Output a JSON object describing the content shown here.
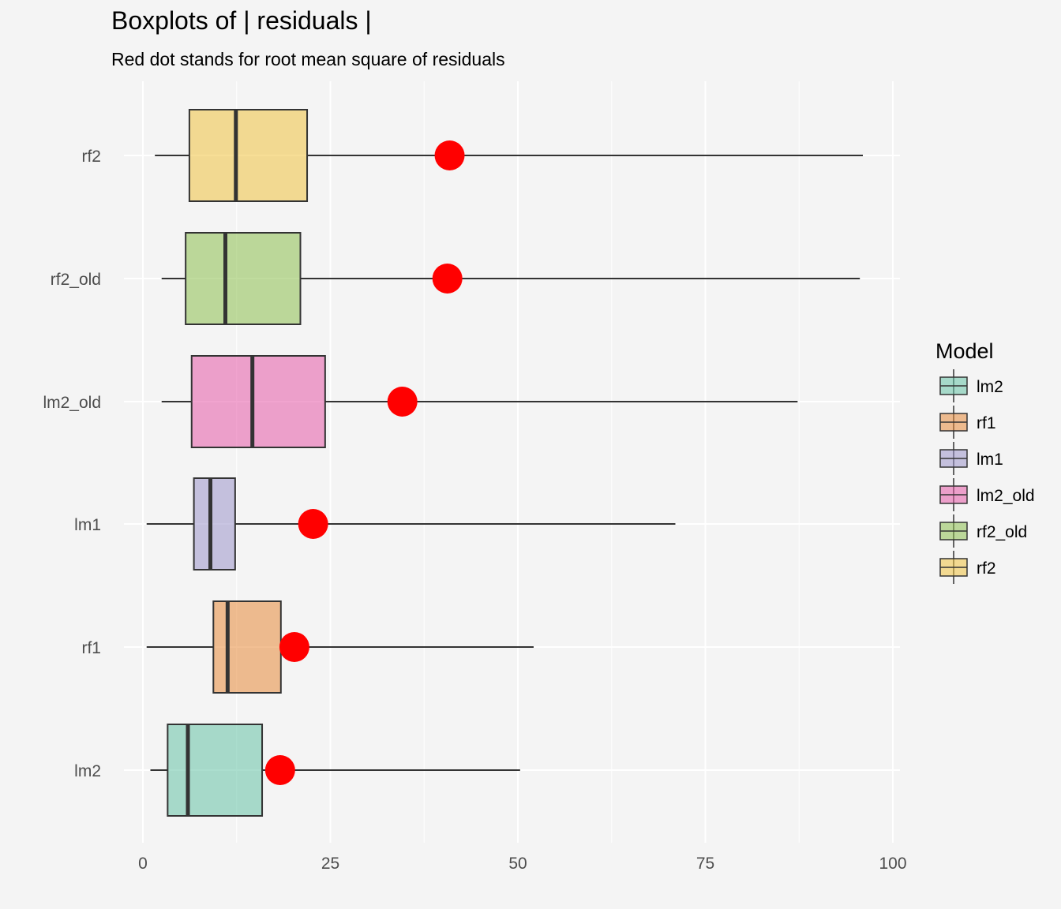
{
  "chart_data": {
    "type": "boxplot",
    "title": "Boxplots of | residuals |",
    "subtitle": "Red dot stands for root mean square of residuals",
    "xlabel": "",
    "ylabel": "",
    "xlim": [
      -3,
      101
    ],
    "x_ticks": [
      0,
      25,
      50,
      75,
      100
    ],
    "grid": true,
    "legend_title": "Model",
    "legend_position": "right",
    "point_color": "#ff0000",
    "series": [
      {
        "name": "lm2",
        "color": "#66c2a5",
        "min": 1.0,
        "q1": 3.3,
        "median": 6.0,
        "q3": 15.9,
        "max": 50.3,
        "rms": 18.3
      },
      {
        "name": "rf1",
        "color": "#e78a3a",
        "min": 0.5,
        "q1": 9.4,
        "median": 11.3,
        "q3": 18.4,
        "max": 52.1,
        "rms": 20.2
      },
      {
        "name": "lm1",
        "color": "#9d95cb",
        "min": 0.5,
        "q1": 6.8,
        "median": 9.0,
        "q3": 12.3,
        "max": 71.0,
        "rms": 22.7
      },
      {
        "name": "lm2_old",
        "color": "#e55aa8",
        "min": 2.5,
        "q1": 6.5,
        "median": 14.6,
        "q3": 24.3,
        "max": 87.3,
        "rms": 34.6
      },
      {
        "name": "rf2_old",
        "color": "#8cbf4f",
        "min": 2.5,
        "q1": 5.7,
        "median": 11.0,
        "q3": 21.0,
        "max": 95.6,
        "rms": 40.6
      },
      {
        "name": "rf2",
        "color": "#f0c240",
        "min": 1.6,
        "q1": 6.2,
        "median": 12.4,
        "q3": 21.9,
        "max": 96.0,
        "rms": 40.9
      }
    ]
  }
}
